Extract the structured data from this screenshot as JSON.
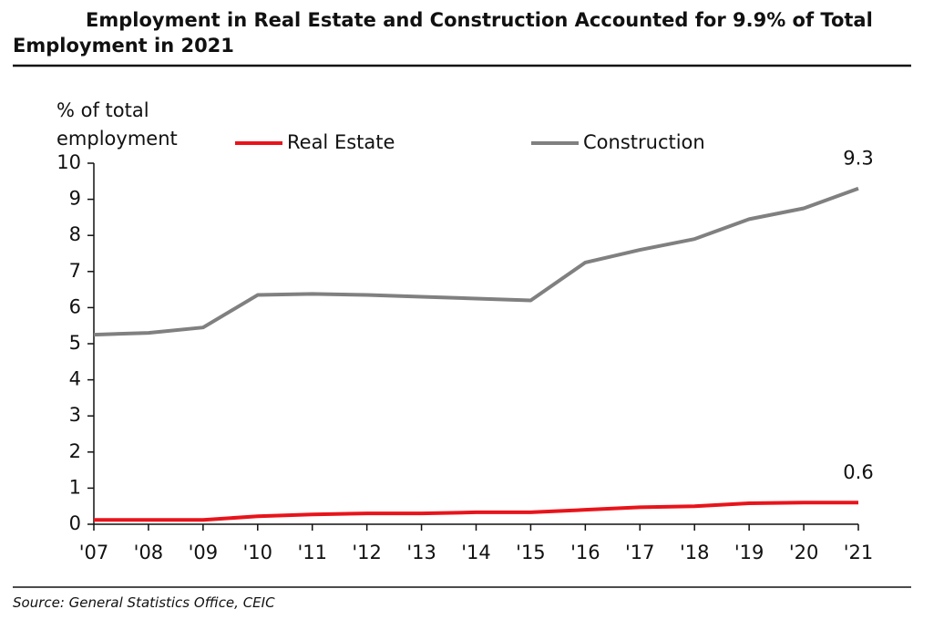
{
  "chart_data": {
    "type": "line",
    "title": "Employment in Real Estate and Construction Accounted for 9.9% of Total Employment in 2021",
    "y_label": "% of total employment",
    "source": "Source: General Statistics Office, CEIC",
    "categories": [
      "'07",
      "'08",
      "'09",
      "'10",
      "'11",
      "'12",
      "'13",
      "'14",
      "'15",
      "'16",
      "'17",
      "'18",
      "'19",
      "'20",
      "'21"
    ],
    "series": [
      {
        "name": "Real Estate",
        "color": "#e8141b",
        "values": [
          0.12,
          0.12,
          0.12,
          0.22,
          0.27,
          0.3,
          0.3,
          0.33,
          0.33,
          0.4,
          0.47,
          0.5,
          0.58,
          0.6,
          0.6
        ]
      },
      {
        "name": "Construction",
        "color": "#808080",
        "values": [
          5.25,
          5.3,
          5.45,
          6.35,
          6.38,
          6.35,
          6.3,
          6.25,
          6.2,
          7.25,
          7.6,
          7.9,
          8.45,
          8.75,
          9.3
        ]
      }
    ],
    "ylim": [
      0,
      10
    ],
    "yticks": [
      0,
      1,
      2,
      3,
      4,
      5,
      6,
      7,
      8,
      9,
      10
    ],
    "grid": false
  }
}
